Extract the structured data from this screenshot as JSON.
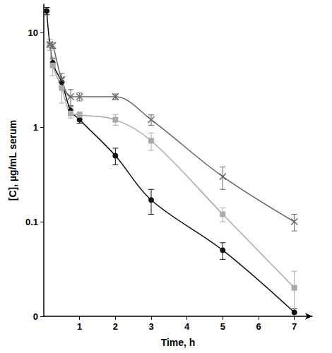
{
  "chart_data": {
    "type": "line",
    "x_label": "Time, h",
    "y_label": "[C], µg/mL serum",
    "log": "y",
    "grid": false,
    "xlim": [
      0,
      7.5
    ],
    "xticks": [
      1,
      2,
      3,
      4,
      5,
      6,
      7
    ],
    "ylim": [
      0.01,
      20
    ],
    "yticks": [
      {
        "value": 0.01,
        "label": "0"
      },
      0.1,
      1,
      10
    ],
    "series": [
      {
        "color": "#111111",
        "marker": "circle",
        "line_style": "solid",
        "x": [
          0.083,
          0.25,
          0.5,
          0.75,
          1,
          2,
          3,
          5,
          7
        ],
        "values": [
          17,
          4.8,
          3.0,
          1.5,
          1.2,
          0.5,
          0.17,
          0.05,
          0.011
        ],
        "errors": [
          1.5,
          0.5,
          0.3,
          0.15,
          0.1,
          0.1,
          0.05,
          0.01,
          0.001
        ]
      },
      {
        "color": "#aaaaaa",
        "marker": "square",
        "line_style": "solid",
        "x": [
          0.167,
          0.25,
          0.5,
          0.75,
          1,
          2,
          3,
          5,
          7
        ],
        "values": [
          7.5,
          4.5,
          2.6,
          1.4,
          1.35,
          1.2,
          0.72,
          0.12,
          0.02
        ],
        "errors": [
          1.0,
          1.0,
          0.8,
          0.15,
          0.1,
          0.15,
          0.15,
          0.02,
          0.01
        ]
      },
      {
        "color": "#666666",
        "marker": "x",
        "line_style": "solid",
        "x": [
          0.167,
          0.25,
          0.5,
          0.75,
          1,
          2,
          3,
          5,
          7
        ],
        "values": [
          7.5,
          7.3,
          3.2,
          2.1,
          2.1,
          2.1,
          1.2,
          0.3,
          0.1
        ],
        "errors": [
          0.5,
          0.5,
          0.5,
          0.4,
          0.2,
          0.15,
          0.15,
          0.08,
          0.02
        ]
      }
    ]
  }
}
